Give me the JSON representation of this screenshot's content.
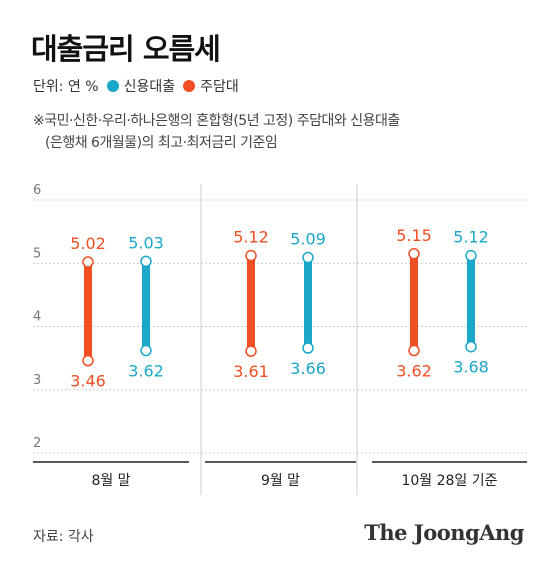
{
  "title": "대출금리 오름세",
  "legend": {
    "unit": "단위: 연 %",
    "items": [
      {
        "label": "신용대출",
        "color": "#1aa7c9"
      },
      {
        "label": "주담대",
        "color": "#f04e23"
      }
    ]
  },
  "note": {
    "line1": "※국민·신한·우리·하나은행의 혼합형(5년 고정) 주담대와 신용대출",
    "line2": "(은행채 6개월물)의 최고·최저금리 기준임"
  },
  "chart_data": {
    "type": "range-bar",
    "ylim": [
      2,
      6
    ],
    "yticks": [
      "2",
      "3",
      "4",
      "5",
      "6"
    ],
    "categories": [
      "8월 말",
      "9월 말",
      "10월 28일 기준"
    ],
    "series": [
      {
        "name": "주담대",
        "color": "#f04e23",
        "high": [
          5.02,
          5.12,
          5.15
        ],
        "low": [
          3.46,
          3.61,
          3.62
        ],
        "high_labels": [
          "5.02",
          "5.12",
          "5.15"
        ],
        "low_labels": [
          "3.46",
          "3.61",
          "3.62"
        ]
      },
      {
        "name": "신용대출",
        "color": "#1aa7c9",
        "high": [
          5.03,
          5.09,
          5.12
        ],
        "low": [
          3.62,
          3.66,
          3.68
        ],
        "high_labels": [
          "5.03",
          "5.09",
          "5.12"
        ],
        "low_labels": [
          "3.62",
          "3.66",
          "3.68"
        ]
      }
    ],
    "grid": true
  },
  "footer": {
    "source": "자료: 각사",
    "brand": "The JoongAng"
  }
}
